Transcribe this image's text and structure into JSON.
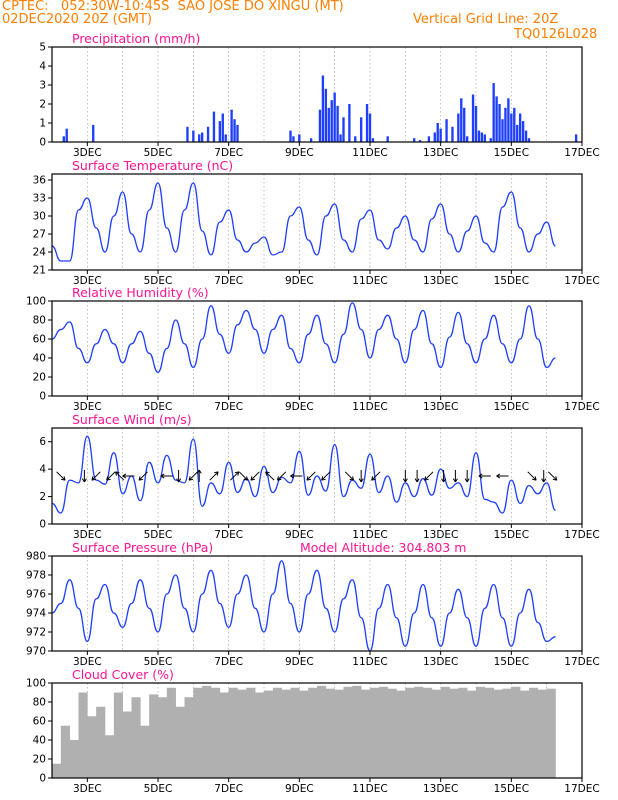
{
  "header": {
    "left_line1": "CPTEC:   052:30W-10:45S  SAO JOSE DO XINGU (MT)",
    "left_line2": "02DEC2020 20Z (GMT)",
    "right_line2": "Vertical Grid Line: 20Z",
    "right_line3": "TQ0126L028"
  },
  "colors": {
    "header": "#ff7f00",
    "panel_title": "#ff1493",
    "series": "#1f3fff",
    "cloud": "#b0b0b0"
  },
  "x_axis": {
    "tick_labels": [
      "3DEC",
      "5DEC",
      "7DEC",
      "9DEC",
      "11DEC",
      "13DEC",
      "15DEC",
      "17DEC"
    ]
  },
  "chart_data": [
    {
      "id": "precip",
      "type": "bar",
      "title": "Precipitation (mm/h)",
      "ylim": [
        0,
        5
      ],
      "yticks": [
        "0",
        "1",
        "2",
        "3",
        "4",
        "5"
      ],
      "x": [
        "03DEC04Z",
        "03DEC06Z",
        "04DEC00Z",
        "06DEC16Z",
        "06DEC20Z",
        "07DEC00Z",
        "07DEC02Z",
        "07DEC06Z",
        "07DEC10Z",
        "07DEC14Z",
        "07DEC16Z",
        "07DEC18Z",
        "07DEC22Z",
        "08DEC00Z",
        "08DEC02Z",
        "09DEC14Z",
        "09DEC16Z",
        "09DEC20Z",
        "10DEC04Z",
        "10DEC10Z",
        "10DEC12Z",
        "10DEC14Z",
        "10DEC16Z",
        "10DEC18Z",
        "10DEC20Z",
        "10DEC22Z",
        "11DEC00Z",
        "11DEC02Z",
        "11DEC06Z",
        "11DEC10Z",
        "11DEC14Z",
        "11DEC18Z",
        "11DEC20Z",
        "11DEC22Z",
        "12DEC08Z",
        "13DEC02Z",
        "13DEC06Z",
        "13DEC12Z",
        "13DEC16Z",
        "13DEC18Z",
        "13DEC20Z",
        "14DEC00Z",
        "14DEC04Z",
        "14DEC08Z",
        "14DEC10Z",
        "14DEC12Z",
        "14DEC14Z",
        "14DEC18Z",
        "14DEC20Z",
        "14DEC22Z",
        "15DEC00Z",
        "15DEC02Z",
        "15DEC06Z",
        "15DEC08Z",
        "15DEC10Z",
        "15DEC12Z",
        "15DEC14Z",
        "15DEC16Z",
        "15DEC18Z",
        "15DEC20Z",
        "15DEC22Z",
        "16DEC00Z",
        "16DEC02Z",
        "16DEC04Z",
        "16DEC06Z",
        "16DEC08Z",
        "17DEC16Z"
      ],
      "values": [
        0.3,
        0.7,
        0.9,
        0.8,
        0.6,
        0.4,
        0.5,
        0.8,
        1.6,
        1.1,
        1.5,
        0.4,
        1.7,
        1.2,
        0.9,
        0.6,
        0.3,
        0.4,
        0.2,
        1.7,
        3.5,
        2.8,
        1.8,
        2.2,
        2.6,
        1.9,
        0.4,
        1.3,
        2.0,
        0.3,
        1.3,
        2.0,
        1.5,
        0.2,
        0.3,
        0.2,
        0.1,
        0.3,
        0.5,
        1.0,
        0.7,
        1.2,
        0.8,
        1.5,
        2.3,
        1.8,
        0.3,
        2.5,
        1.9,
        0.6,
        0.5,
        0.4,
        0.2,
        3.1,
        2.4,
        2.0,
        1.2,
        1.8,
        2.3,
        1.5,
        1.8,
        0.9,
        1.5,
        1.1,
        0.6,
        0.2,
        0.4
      ]
    },
    {
      "id": "temp",
      "type": "line",
      "title": "Surface Temperature (nC)",
      "ylim": [
        21,
        37
      ],
      "yticks": [
        "21",
        "24",
        "27",
        "30",
        "33",
        "36"
      ],
      "x": [
        "02DEC20Z",
        "03DEC02Z",
        "03DEC08Z",
        "03DEC14Z",
        "03DEC20Z",
        "04DEC02Z",
        "04DEC08Z",
        "04DEC14Z",
        "04DEC20Z",
        "05DEC02Z",
        "05DEC08Z",
        "05DEC14Z",
        "05DEC20Z",
        "06DEC02Z",
        "06DEC08Z",
        "06DEC14Z",
        "06DEC20Z",
        "07DEC02Z",
        "07DEC08Z",
        "07DEC14Z",
        "07DEC20Z",
        "08DEC02Z",
        "08DEC08Z",
        "08DEC14Z",
        "08DEC20Z",
        "09DEC02Z",
        "09DEC08Z",
        "09DEC14Z",
        "09DEC20Z",
        "10DEC02Z",
        "10DEC08Z",
        "10DEC14Z",
        "10DEC20Z",
        "11DEC02Z",
        "11DEC08Z",
        "11DEC14Z",
        "11DEC20Z",
        "12DEC02Z",
        "12DEC08Z",
        "12DEC14Z",
        "12DEC20Z",
        "13DEC02Z",
        "13DEC08Z",
        "13DEC14Z",
        "13DEC20Z",
        "14DEC02Z",
        "14DEC08Z",
        "14DEC14Z",
        "14DEC20Z",
        "15DEC02Z",
        "15DEC08Z",
        "15DEC14Z",
        "15DEC20Z",
        "16DEC02Z",
        "16DEC08Z",
        "16DEC14Z",
        "16DEC20Z",
        "17DEC02Z"
      ],
      "values": [
        25,
        22.5,
        22.5,
        31,
        33,
        28,
        24,
        30,
        34,
        27,
        24,
        31,
        35.5,
        28,
        24,
        31,
        35.5,
        27.5,
        23.5,
        29,
        31,
        26,
        24,
        25.5,
        26.5,
        23.5,
        24,
        30,
        31.5,
        26,
        23.5,
        30,
        32,
        26,
        24,
        29.5,
        31,
        26,
        24.5,
        28,
        30,
        26,
        24,
        29.5,
        32,
        27,
        24,
        27.5,
        30,
        25.5,
        24,
        31.5,
        34,
        28,
        24,
        27,
        29,
        25
      ]
    },
    {
      "id": "rh",
      "type": "line",
      "title": "Relative Humidity (%)",
      "ylim": [
        0,
        100
      ],
      "yticks": [
        "0",
        "20",
        "40",
        "60",
        "80",
        "100"
      ],
      "x": [
        "02DEC20Z",
        "03DEC02Z",
        "03DEC08Z",
        "03DEC14Z",
        "03DEC20Z",
        "04DEC02Z",
        "04DEC08Z",
        "04DEC14Z",
        "04DEC20Z",
        "05DEC02Z",
        "05DEC08Z",
        "05DEC14Z",
        "05DEC20Z",
        "06DEC02Z",
        "06DEC08Z",
        "06DEC14Z",
        "06DEC20Z",
        "07DEC02Z",
        "07DEC08Z",
        "07DEC14Z",
        "07DEC20Z",
        "08DEC02Z",
        "08DEC08Z",
        "08DEC14Z",
        "08DEC20Z",
        "09DEC02Z",
        "09DEC08Z",
        "09DEC14Z",
        "09DEC20Z",
        "10DEC02Z",
        "10DEC08Z",
        "10DEC14Z",
        "10DEC20Z",
        "11DEC02Z",
        "11DEC08Z",
        "11DEC14Z",
        "11DEC20Z",
        "12DEC02Z",
        "12DEC08Z",
        "12DEC14Z",
        "12DEC20Z",
        "13DEC02Z",
        "13DEC08Z",
        "13DEC14Z",
        "13DEC20Z",
        "14DEC02Z",
        "14DEC08Z",
        "14DEC14Z",
        "14DEC20Z",
        "15DEC02Z",
        "15DEC08Z",
        "15DEC14Z",
        "15DEC20Z",
        "16DEC02Z",
        "16DEC08Z",
        "16DEC14Z",
        "16DEC20Z",
        "17DEC02Z"
      ],
      "values": [
        60,
        70,
        78,
        50,
        35,
        55,
        70,
        55,
        35,
        55,
        68,
        45,
        25,
        50,
        80,
        55,
        30,
        60,
        95,
        65,
        45,
        75,
        90,
        70,
        45,
        70,
        85,
        50,
        35,
        65,
        85,
        55,
        35,
        65,
        98,
        70,
        40,
        70,
        85,
        60,
        35,
        70,
        90,
        55,
        30,
        62,
        88,
        55,
        35,
        60,
        85,
        55,
        35,
        60,
        95,
        60,
        30,
        40
      ]
    },
    {
      "id": "wind",
      "type": "line",
      "title": "Surface Wind (m/s)",
      "ylim": [
        0,
        7
      ],
      "yticks": [
        "0",
        "2",
        "4",
        "6"
      ],
      "x": [
        "02DEC20Z",
        "03DEC02Z",
        "03DEC08Z",
        "03DEC14Z",
        "03DEC20Z",
        "04DEC02Z",
        "04DEC08Z",
        "04DEC14Z",
        "04DEC20Z",
        "05DEC02Z",
        "05DEC08Z",
        "05DEC14Z",
        "05DEC20Z",
        "06DEC02Z",
        "06DEC08Z",
        "06DEC14Z",
        "06DEC20Z",
        "07DEC02Z",
        "07DEC08Z",
        "07DEC14Z",
        "07DEC20Z",
        "08DEC02Z",
        "08DEC08Z",
        "08DEC14Z",
        "08DEC20Z",
        "09DEC02Z",
        "09DEC08Z",
        "09DEC14Z",
        "09DEC20Z",
        "10DEC02Z",
        "10DEC08Z",
        "10DEC14Z",
        "10DEC20Z",
        "11DEC02Z",
        "11DEC08Z",
        "11DEC14Z",
        "11DEC20Z",
        "12DEC02Z",
        "12DEC08Z",
        "12DEC14Z",
        "12DEC20Z",
        "13DEC02Z",
        "13DEC08Z",
        "13DEC14Z",
        "13DEC20Z",
        "14DEC02Z",
        "14DEC08Z",
        "14DEC14Z",
        "14DEC20Z",
        "15DEC02Z",
        "15DEC08Z",
        "15DEC14Z",
        "15DEC20Z",
        "16DEC02Z",
        "16DEC08Z",
        "16DEC14Z",
        "16DEC20Z",
        "17DEC02Z"
      ],
      "values": [
        1.5,
        0.8,
        3.2,
        3.0,
        6.4,
        3.2,
        2.9,
        5.2,
        2.2,
        3.5,
        1.7,
        4.5,
        3.0,
        5.0,
        3.2,
        3.0,
        6.2,
        1.3,
        3.0,
        2.2,
        4.5,
        2.3,
        3.3,
        2.0,
        4.2,
        2.3,
        3.4,
        3.0,
        5.3,
        2.1,
        3.5,
        2.4,
        5.8,
        2.0,
        3.2,
        2.6,
        5.1,
        2.3,
        3.5,
        1.6,
        3.0,
        2.0,
        3.3,
        2.1,
        4.0,
        2.6,
        3.0,
        2.0,
        5.2,
        1.8,
        1.6,
        0.8,
        3.2,
        1.5,
        2.8,
        2.2,
        3.0,
        1.0
      ],
      "arrows": [
        {
          "x": "03DEC02Z",
          "dir": "SE"
        },
        {
          "x": "03DEC18Z",
          "dir": "S"
        },
        {
          "x": "04DEC02Z",
          "dir": "SW"
        },
        {
          "x": "04DEC12Z",
          "dir": "SW"
        },
        {
          "x": "04DEC18Z",
          "dir": "NW"
        },
        {
          "x": "05DEC00Z",
          "dir": "W"
        },
        {
          "x": "05DEC10Z",
          "dir": "SW"
        },
        {
          "x": "06DEC02Z",
          "dir": "W"
        },
        {
          "x": "06DEC10Z",
          "dir": "S"
        },
        {
          "x": "06DEC20Z",
          "dir": "SW"
        },
        {
          "x": "07DEC00Z",
          "dir": "N"
        },
        {
          "x": "07DEC10Z",
          "dir": "NE"
        },
        {
          "x": "08DEC00Z",
          "dir": "NE"
        },
        {
          "x": "08DEC06Z",
          "dir": "SE"
        },
        {
          "x": "08DEC14Z",
          "dir": "SW"
        },
        {
          "x": "09DEC00Z",
          "dir": "NW"
        },
        {
          "x": "09DEC08Z",
          "dir": "SW"
        },
        {
          "x": "09DEC18Z",
          "dir": "W"
        },
        {
          "x": "10DEC04Z",
          "dir": "SW"
        },
        {
          "x": "10DEC14Z",
          "dir": "SW"
        },
        {
          "x": "11DEC06Z",
          "dir": "SE"
        },
        {
          "x": "11DEC14Z",
          "dir": "S"
        },
        {
          "x": "12DEC00Z",
          "dir": "SW"
        },
        {
          "x": "12DEC20Z",
          "dir": "S"
        },
        {
          "x": "13DEC04Z",
          "dir": "S"
        },
        {
          "x": "13DEC12Z",
          "dir": "SW"
        },
        {
          "x": "13DEC22Z",
          "dir": "S"
        },
        {
          "x": "14DEC06Z",
          "dir": "S"
        },
        {
          "x": "14DEC14Z",
          "dir": "S"
        },
        {
          "x": "15DEC02Z",
          "dir": "W"
        },
        {
          "x": "15DEC14Z",
          "dir": "W"
        },
        {
          "x": "16DEC10Z",
          "dir": "SE"
        },
        {
          "x": "16DEC18Z",
          "dir": "S"
        },
        {
          "x": "17DEC00Z",
          "dir": "SE"
        }
      ]
    },
    {
      "id": "pres",
      "type": "line",
      "title": "Surface Pressure (hPa)",
      "annotation": "Model Altitude: 304.803 m",
      "ylim": [
        970,
        980
      ],
      "yticks": [
        "970",
        "972",
        "974",
        "976",
        "978",
        "980"
      ],
      "x": [
        "02DEC20Z",
        "03DEC02Z",
        "03DEC08Z",
        "03DEC14Z",
        "03DEC20Z",
        "04DEC02Z",
        "04DEC08Z",
        "04DEC14Z",
        "04DEC20Z",
        "05DEC02Z",
        "05DEC08Z",
        "05DEC14Z",
        "05DEC20Z",
        "06DEC02Z",
        "06DEC08Z",
        "06DEC14Z",
        "06DEC20Z",
        "07DEC02Z",
        "07DEC08Z",
        "07DEC14Z",
        "07DEC20Z",
        "08DEC02Z",
        "08DEC08Z",
        "08DEC14Z",
        "08DEC20Z",
        "09DEC02Z",
        "09DEC08Z",
        "09DEC14Z",
        "09DEC20Z",
        "10DEC02Z",
        "10DEC08Z",
        "10DEC14Z",
        "10DEC20Z",
        "11DEC02Z",
        "11DEC08Z",
        "11DEC14Z",
        "11DEC20Z",
        "12DEC02Z",
        "12DEC08Z",
        "12DEC14Z",
        "12DEC20Z",
        "13DEC02Z",
        "13DEC08Z",
        "13DEC14Z",
        "13DEC20Z",
        "14DEC02Z",
        "14DEC08Z",
        "14DEC14Z",
        "14DEC20Z",
        "15DEC02Z",
        "15DEC08Z",
        "15DEC14Z",
        "15DEC20Z",
        "16DEC02Z",
        "16DEC08Z",
        "16DEC14Z",
        "16DEC20Z",
        "17DEC02Z"
      ],
      "values": [
        974,
        975,
        977.5,
        974.5,
        971,
        975.5,
        977,
        974,
        972.5,
        975,
        977.5,
        974.5,
        972,
        976,
        978,
        974.5,
        972,
        976,
        978.5,
        975,
        972.5,
        976,
        978,
        974.5,
        972,
        976,
        979.5,
        975,
        972,
        976,
        978.5,
        974.5,
        972,
        975.5,
        977.5,
        973.5,
        970,
        974.5,
        977,
        973.5,
        970.5,
        974,
        977,
        973.5,
        970.5,
        974,
        976.5,
        973.5,
        970.5,
        974.5,
        977,
        973.5,
        970.5,
        974,
        976.5,
        973,
        971,
        971.5
      ]
    },
    {
      "id": "cloud",
      "type": "area",
      "title": "Cloud Cover (%)",
      "ylim": [
        0,
        100
      ],
      "yticks": [
        "0",
        "20",
        "40",
        "60",
        "80",
        "100"
      ],
      "x": [
        "02DEC20Z",
        "03DEC02Z",
        "03DEC08Z",
        "03DEC14Z",
        "03DEC20Z",
        "04DEC02Z",
        "04DEC08Z",
        "04DEC14Z",
        "04DEC20Z",
        "05DEC02Z",
        "05DEC08Z",
        "05DEC14Z",
        "05DEC20Z",
        "06DEC02Z",
        "06DEC08Z",
        "06DEC14Z",
        "06DEC20Z",
        "07DEC02Z",
        "07DEC08Z",
        "07DEC14Z",
        "07DEC20Z",
        "08DEC02Z",
        "08DEC08Z",
        "08DEC14Z",
        "08DEC20Z",
        "09DEC02Z",
        "09DEC08Z",
        "09DEC14Z",
        "09DEC20Z",
        "10DEC02Z",
        "10DEC08Z",
        "10DEC14Z",
        "10DEC20Z",
        "11DEC02Z",
        "11DEC08Z",
        "11DEC14Z",
        "11DEC20Z",
        "12DEC02Z",
        "12DEC08Z",
        "12DEC14Z",
        "12DEC20Z",
        "13DEC02Z",
        "13DEC08Z",
        "13DEC14Z",
        "13DEC20Z",
        "14DEC02Z",
        "14DEC08Z",
        "14DEC14Z",
        "14DEC20Z",
        "15DEC02Z",
        "15DEC08Z",
        "15DEC14Z",
        "15DEC20Z",
        "16DEC02Z",
        "16DEC08Z",
        "16DEC14Z",
        "16DEC20Z",
        "17DEC02Z"
      ],
      "values": [
        15,
        55,
        40,
        90,
        65,
        75,
        45,
        90,
        70,
        85,
        55,
        88,
        85,
        95,
        75,
        85,
        95,
        97,
        95,
        90,
        95,
        93,
        95,
        90,
        92,
        95,
        93,
        95,
        92,
        95,
        97,
        94,
        93,
        96,
        97,
        93,
        95,
        96,
        94,
        92,
        95,
        96,
        95,
        93,
        96,
        94,
        95,
        92,
        96,
        95,
        93,
        94,
        96,
        92,
        95,
        93,
        94,
        92
      ]
    }
  ]
}
